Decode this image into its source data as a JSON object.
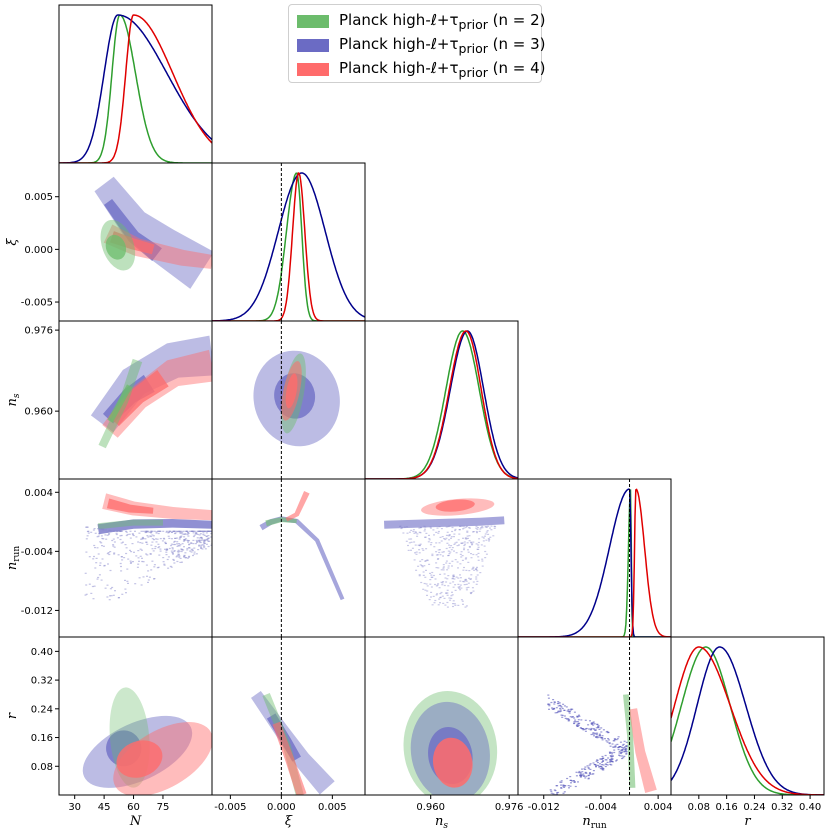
{
  "legend": {
    "entries": [
      {
        "label": "Planck high-ℓ+τprior (n = 2)",
        "base": "Planck high-ℓ+τ",
        "sub": "prior",
        "tail": " (n = 2)",
        "color": "#2e9e2e",
        "fill": "#6cbc6c"
      },
      {
        "label": "Planck high-ℓ+τprior (n = 3)",
        "base": "Planck high-ℓ+τ",
        "sub": "prior",
        "tail": " (n = 3)",
        "color": "#00008b",
        "fill": "#6b6bc4"
      },
      {
        "label": "Planck high-ℓ+τprior (n = 4)",
        "base": "Planck high-ℓ+τ",
        "sub": "prior",
        "tail": " (n = 4)",
        "color": "#e00000",
        "fill": "#ff6b6b"
      }
    ]
  },
  "chart_data": {
    "type": "triangle",
    "parameters": [
      {
        "key": "N",
        "label": "N",
        "range": [
          22,
          100
        ],
        "ticks": [
          30,
          45,
          60,
          75
        ],
        "tick_labels": [
          "30",
          "45",
          "60",
          "75"
        ]
      },
      {
        "key": "xi",
        "label": "ξ",
        "range": [
          -0.0068,
          0.0082
        ],
        "ticks": [
          -0.005,
          0.0,
          0.005
        ],
        "tick_labels": [
          "-0.005",
          "0.000",
          "0.005"
        ]
      },
      {
        "key": "ns",
        "label": "n_s",
        "range": [
          0.9466,
          0.9778
        ],
        "ticks": [
          0.96,
          0.976
        ],
        "tick_labels": [
          "0.960",
          "0.976"
        ]
      },
      {
        "key": "nrun",
        "label": "n_run",
        "range": [
          -0.0156,
          0.0058
        ],
        "ticks": [
          -0.012,
          -0.004,
          0.004
        ],
        "tick_labels": [
          "-0.012",
          "-0.004",
          "0.004"
        ]
      },
      {
        "key": "r",
        "label": "r",
        "range": [
          0.0,
          0.44
        ],
        "ticks": [
          0.08,
          0.16,
          0.24,
          0.32,
          0.4
        ],
        "tick_labels": [
          "0.08",
          "0.16",
          "0.24",
          "0.32",
          "0.40"
        ]
      }
    ],
    "reference_lines": {
      "xi": 0.0,
      "nrun": 0.0
    },
    "series": [
      {
        "name": "n = 2",
        "marginals": {
          "N": {
            "peak": 53,
            "sd_left": 4,
            "sd_right": 8
          },
          "xi": {
            "peak": 0.0015,
            "sd_left": 0.001,
            "sd_right": 0.0005
          },
          "ns": {
            "peak": 0.9665,
            "sd_left": 0.0034,
            "sd_right": 0.0034
          },
          "nrun": {
            "peak": 0.00015,
            "sd_left": 0.0003,
            "sd_right": 0.0001
          },
          "r": {
            "peak": 0.1,
            "sd_left": 0.07,
            "sd_right": 0.07
          }
        }
      },
      {
        "name": "n = 3",
        "marginals": {
          "N": {
            "peak": 52,
            "sd_left": 7,
            "sd_right": 25
          },
          "xi": {
            "peak": 0.002,
            "sd_left": 0.0023,
            "sd_right": 0.0023
          },
          "ns": {
            "peak": 0.9675,
            "sd_left": 0.0035,
            "sd_right": 0.0033
          },
          "nrun": {
            "peak": 0.0,
            "sd_left": 0.0028,
            "sd_right": 0.0002
          },
          "r": {
            "peak": 0.14,
            "sd_left": 0.065,
            "sd_right": 0.075
          }
        }
      },
      {
        "name": "n = 4",
        "marginals": {
          "N": {
            "peak": 60,
            "sd_left": 4,
            "sd_right": 20
          },
          "xi": {
            "peak": 0.0017,
            "sd_left": 0.0006,
            "sd_right": 0.0006
          },
          "ns": {
            "peak": 0.9672,
            "sd_left": 0.0034,
            "sd_right": 0.0031
          },
          "nrun": {
            "peak": 0.0009,
            "sd_left": 0.0002,
            "sd_right": 0.0012
          },
          "r": {
            "peak": 0.08,
            "sd_left": 0.07,
            "sd_right": 0.09
          }
        }
      }
    ]
  }
}
